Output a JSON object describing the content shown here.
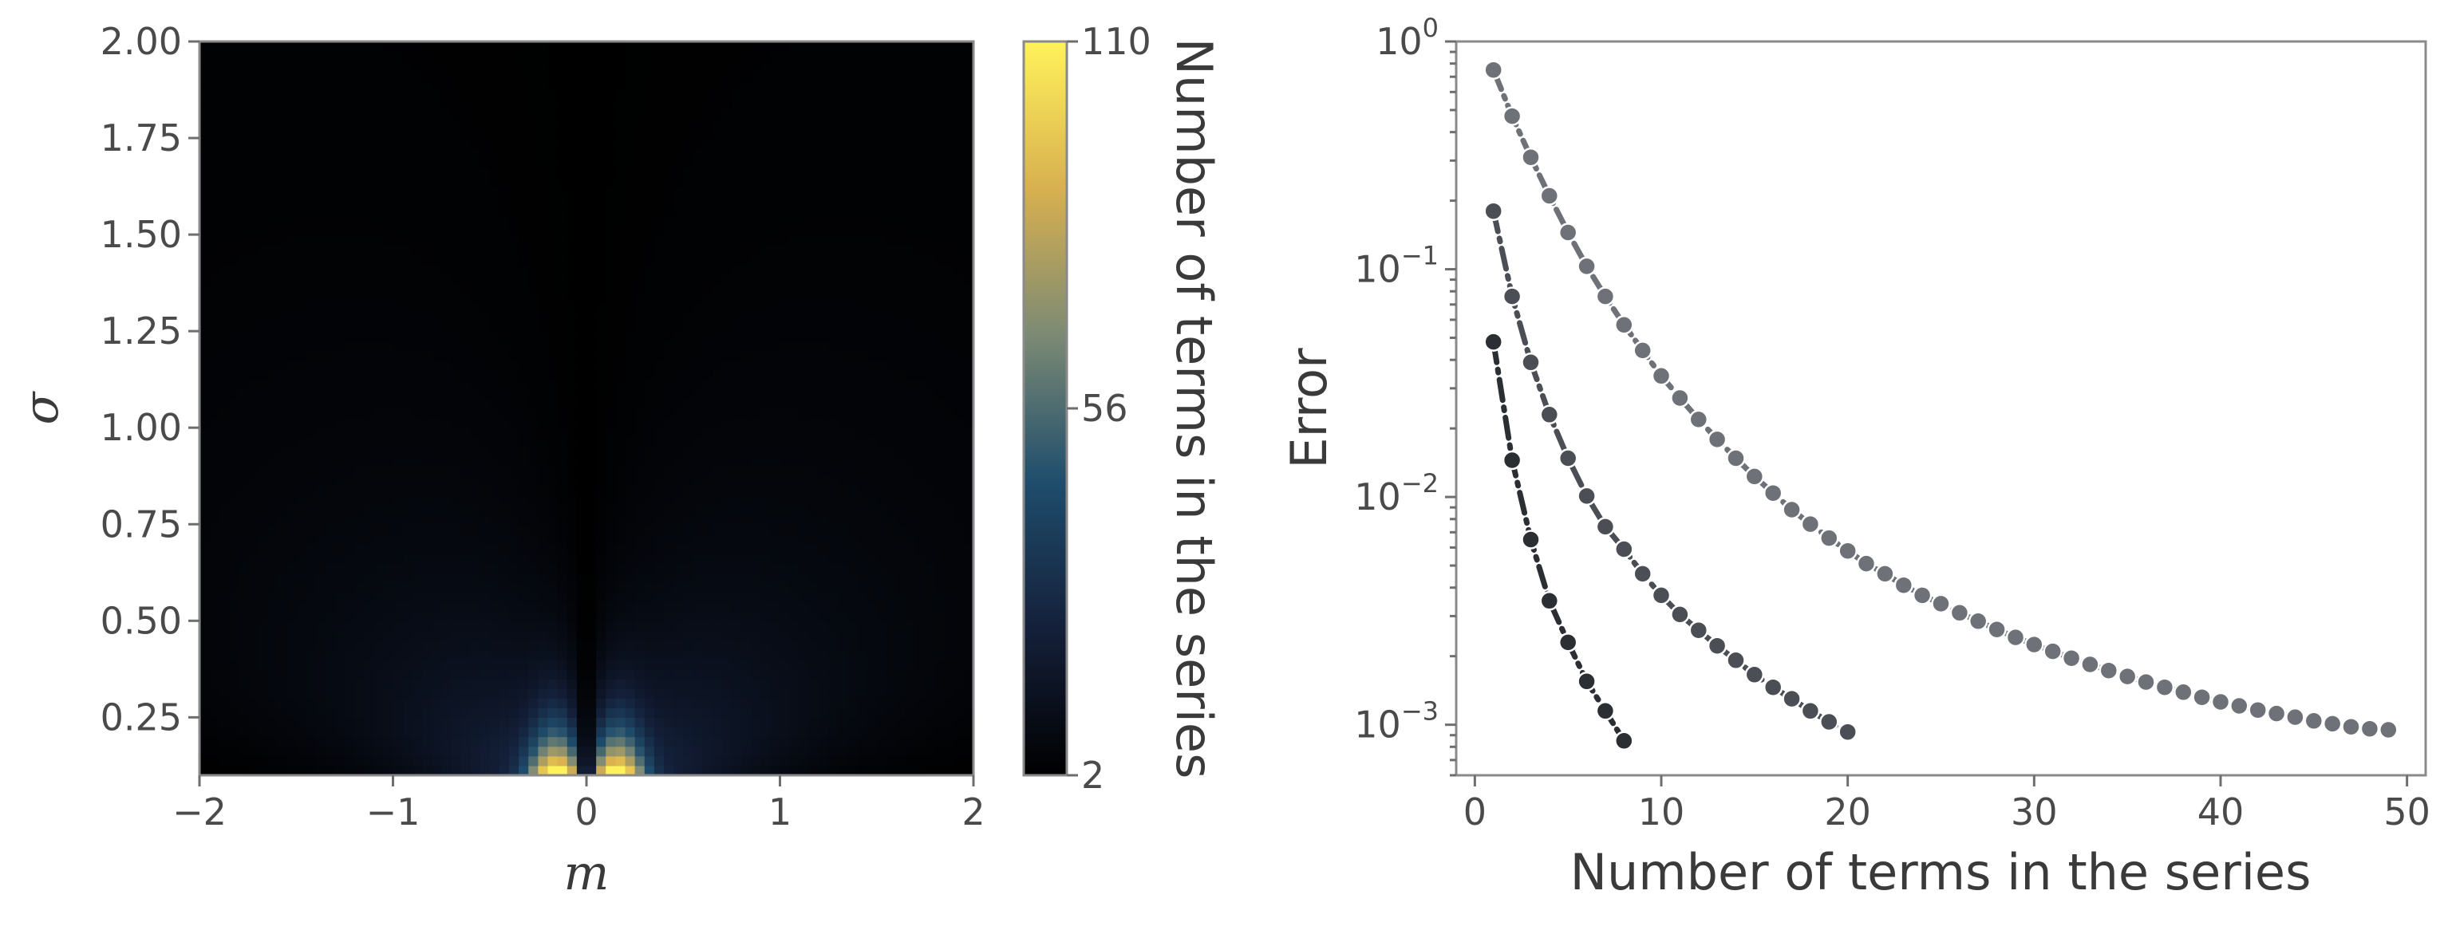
{
  "chart_data": [
    {
      "type": "heatmap",
      "xlabel": "m",
      "ylabel": "σ",
      "xlim": [
        -2,
        2
      ],
      "ylim": [
        0.1,
        2.0
      ],
      "x_ticks": [
        "−2",
        "−1",
        "0",
        "1",
        "2"
      ],
      "x_tick_values": [
        -2,
        -1,
        0,
        1,
        2
      ],
      "y_ticks": [
        "0.25",
        "0.50",
        "0.75",
        "1.00",
        "1.25",
        "1.50",
        "1.75",
        "2.00"
      ],
      "y_tick_values": [
        0.25,
        0.5,
        0.75,
        1.0,
        1.25,
        1.5,
        1.75,
        2.0
      ],
      "colorbar": {
        "label": "Number of terms in the series",
        "min": 2,
        "max": 110,
        "ticks": [
          "2",
          "56",
          "110"
        ],
        "tick_values": [
          2,
          56,
          110
        ],
        "colors": [
          "#000000",
          "#14203a",
          "#1f4d6c",
          "#7c8a74",
          "#d8b050",
          "#fff25a"
        ]
      },
      "description_values": {
        "peak_value": 110,
        "peak_location_m": [
          -0.15,
          0.15
        ],
        "peak_location_sigma": 0.1
      }
    },
    {
      "type": "line",
      "xlabel": "Number of terms in the series",
      "ylabel": "Error",
      "y_scale": "log",
      "xlim": [
        -1,
        51
      ],
      "ylim": [
        0.0006,
        1.0
      ],
      "x_ticks": [
        "0",
        "10",
        "20",
        "30",
        "40",
        "50"
      ],
      "x_tick_values": [
        0,
        10,
        20,
        30,
        40,
        50
      ],
      "y_ticks": [
        {
          "base": "10",
          "exp": "0",
          "value": 1
        },
        {
          "base": "10",
          "exp": "−1",
          "value": 0.1
        },
        {
          "base": "10",
          "exp": "−2",
          "value": 0.01
        },
        {
          "base": "10",
          "exp": "−3",
          "value": 0.001
        }
      ],
      "grid": false,
      "series": [
        {
          "color": "#6e7278",
          "dash": "dash-dot",
          "x": [
            1,
            2,
            3,
            4,
            5,
            6,
            7,
            8,
            9,
            10,
            11,
            12,
            13,
            14,
            15,
            16,
            17,
            18,
            19,
            20,
            21,
            22,
            23,
            24,
            25,
            26,
            27,
            28,
            29,
            30,
            31,
            32,
            33,
            34,
            35,
            36,
            37,
            38,
            39,
            40,
            41,
            42,
            43,
            44,
            45,
            46,
            47,
            48,
            49
          ],
          "y": [
            0.75,
            0.47,
            0.31,
            0.21,
            0.145,
            0.103,
            0.076,
            0.057,
            0.044,
            0.034,
            0.0272,
            0.0219,
            0.0179,
            0.0148,
            0.0123,
            0.0104,
            0.0088,
            0.0076,
            0.0066,
            0.0058,
            0.0051,
            0.0046,
            0.0041,
            0.0037,
            0.0034,
            0.0031,
            0.00285,
            0.00262,
            0.00242,
            0.00225,
            0.0021,
            0.00196,
            0.00184,
            0.00173,
            0.00163,
            0.00154,
            0.00146,
            0.00139,
            0.00132,
            0.00126,
            0.00121,
            0.00116,
            0.00112,
            0.00108,
            0.00104,
            0.00101,
            0.00098,
            0.00096,
            0.00095
          ]
        },
        {
          "color": "#4b4f55",
          "dash": "dash-dot",
          "x": [
            1,
            2,
            3,
            4,
            5,
            6,
            7,
            8,
            9,
            10,
            11,
            12,
            13,
            14,
            15,
            16,
            17,
            18,
            19,
            20
          ],
          "y": [
            0.18,
            0.076,
            0.039,
            0.023,
            0.0148,
            0.0101,
            0.0074,
            0.0059,
            0.0046,
            0.0037,
            0.00305,
            0.0026,
            0.00222,
            0.00192,
            0.00166,
            0.00146,
            0.0013,
            0.00115,
            0.00103,
            0.00093
          ]
        },
        {
          "color": "#2b2e33",
          "dash": "dash-dot",
          "x": [
            1,
            2,
            3,
            4,
            5,
            6,
            7,
            8
          ],
          "y": [
            0.048,
            0.0145,
            0.0065,
            0.0035,
            0.0023,
            0.00155,
            0.00115,
            0.00085
          ]
        }
      ]
    }
  ]
}
